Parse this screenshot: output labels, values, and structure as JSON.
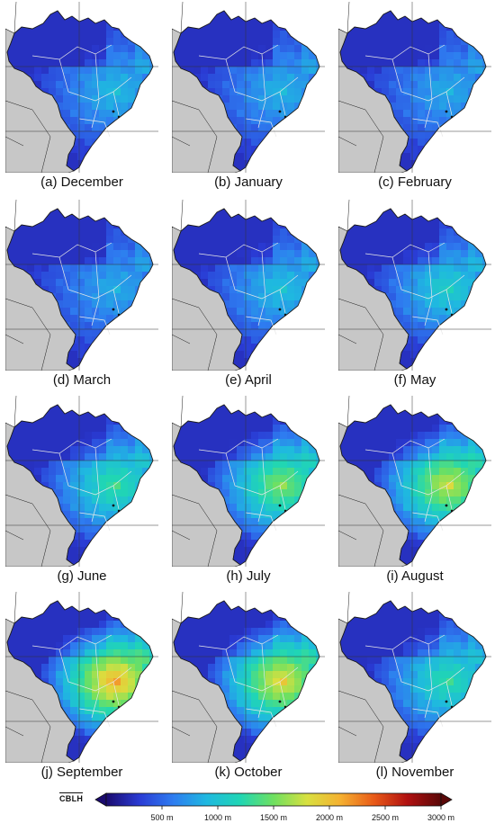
{
  "panels": [
    {
      "label": "(a) December",
      "month": "December",
      "intensity": 0.28
    },
    {
      "label": "(b) January",
      "month": "January",
      "intensity": 0.26
    },
    {
      "label": "(c) February",
      "month": "February",
      "intensity": 0.24
    },
    {
      "label": "(d) March",
      "month": "March",
      "intensity": 0.24
    },
    {
      "label": "(e) April",
      "month": "April",
      "intensity": 0.3
    },
    {
      "label": "(f) May",
      "month": "May",
      "intensity": 0.36
    },
    {
      "label": "(g) June",
      "month": "June",
      "intensity": 0.46
    },
    {
      "label": "(h) July",
      "month": "July",
      "intensity": 0.58
    },
    {
      "label": "(i) August",
      "month": "August",
      "intensity": 0.68
    },
    {
      "label": "(j) September",
      "month": "September",
      "intensity": 0.84
    },
    {
      "label": "(k) October",
      "month": "October",
      "intensity": 0.74
    },
    {
      "label": "(l) November",
      "month": "November",
      "intensity": 0.44
    }
  ],
  "colorbar": {
    "title": "CBLH",
    "min": 0,
    "max": 3000,
    "unit": "m",
    "ticks": [
      {
        "value": 500,
        "label": "500 m"
      },
      {
        "value": 1000,
        "label": "1000 m"
      },
      {
        "value": 1500,
        "label": "1500 m"
      },
      {
        "value": 2000,
        "label": "2000 m"
      },
      {
        "value": 2500,
        "label": "2500 m"
      },
      {
        "value": 3000,
        "label": "3000 m"
      }
    ],
    "colors": [
      "#1a0a6e",
      "#2a3bd4",
      "#2e7cf0",
      "#1fb8e0",
      "#20d6b4",
      "#6fe060",
      "#d8e040",
      "#f5b030",
      "#e85a18",
      "#b01010",
      "#5a0808"
    ],
    "extend": "both"
  },
  "map_colors": {
    "land": "#c7c7c7",
    "ocean": "#ffffff",
    "borders": "#1a1a1a",
    "state_lines": "#e8e8e8"
  }
}
